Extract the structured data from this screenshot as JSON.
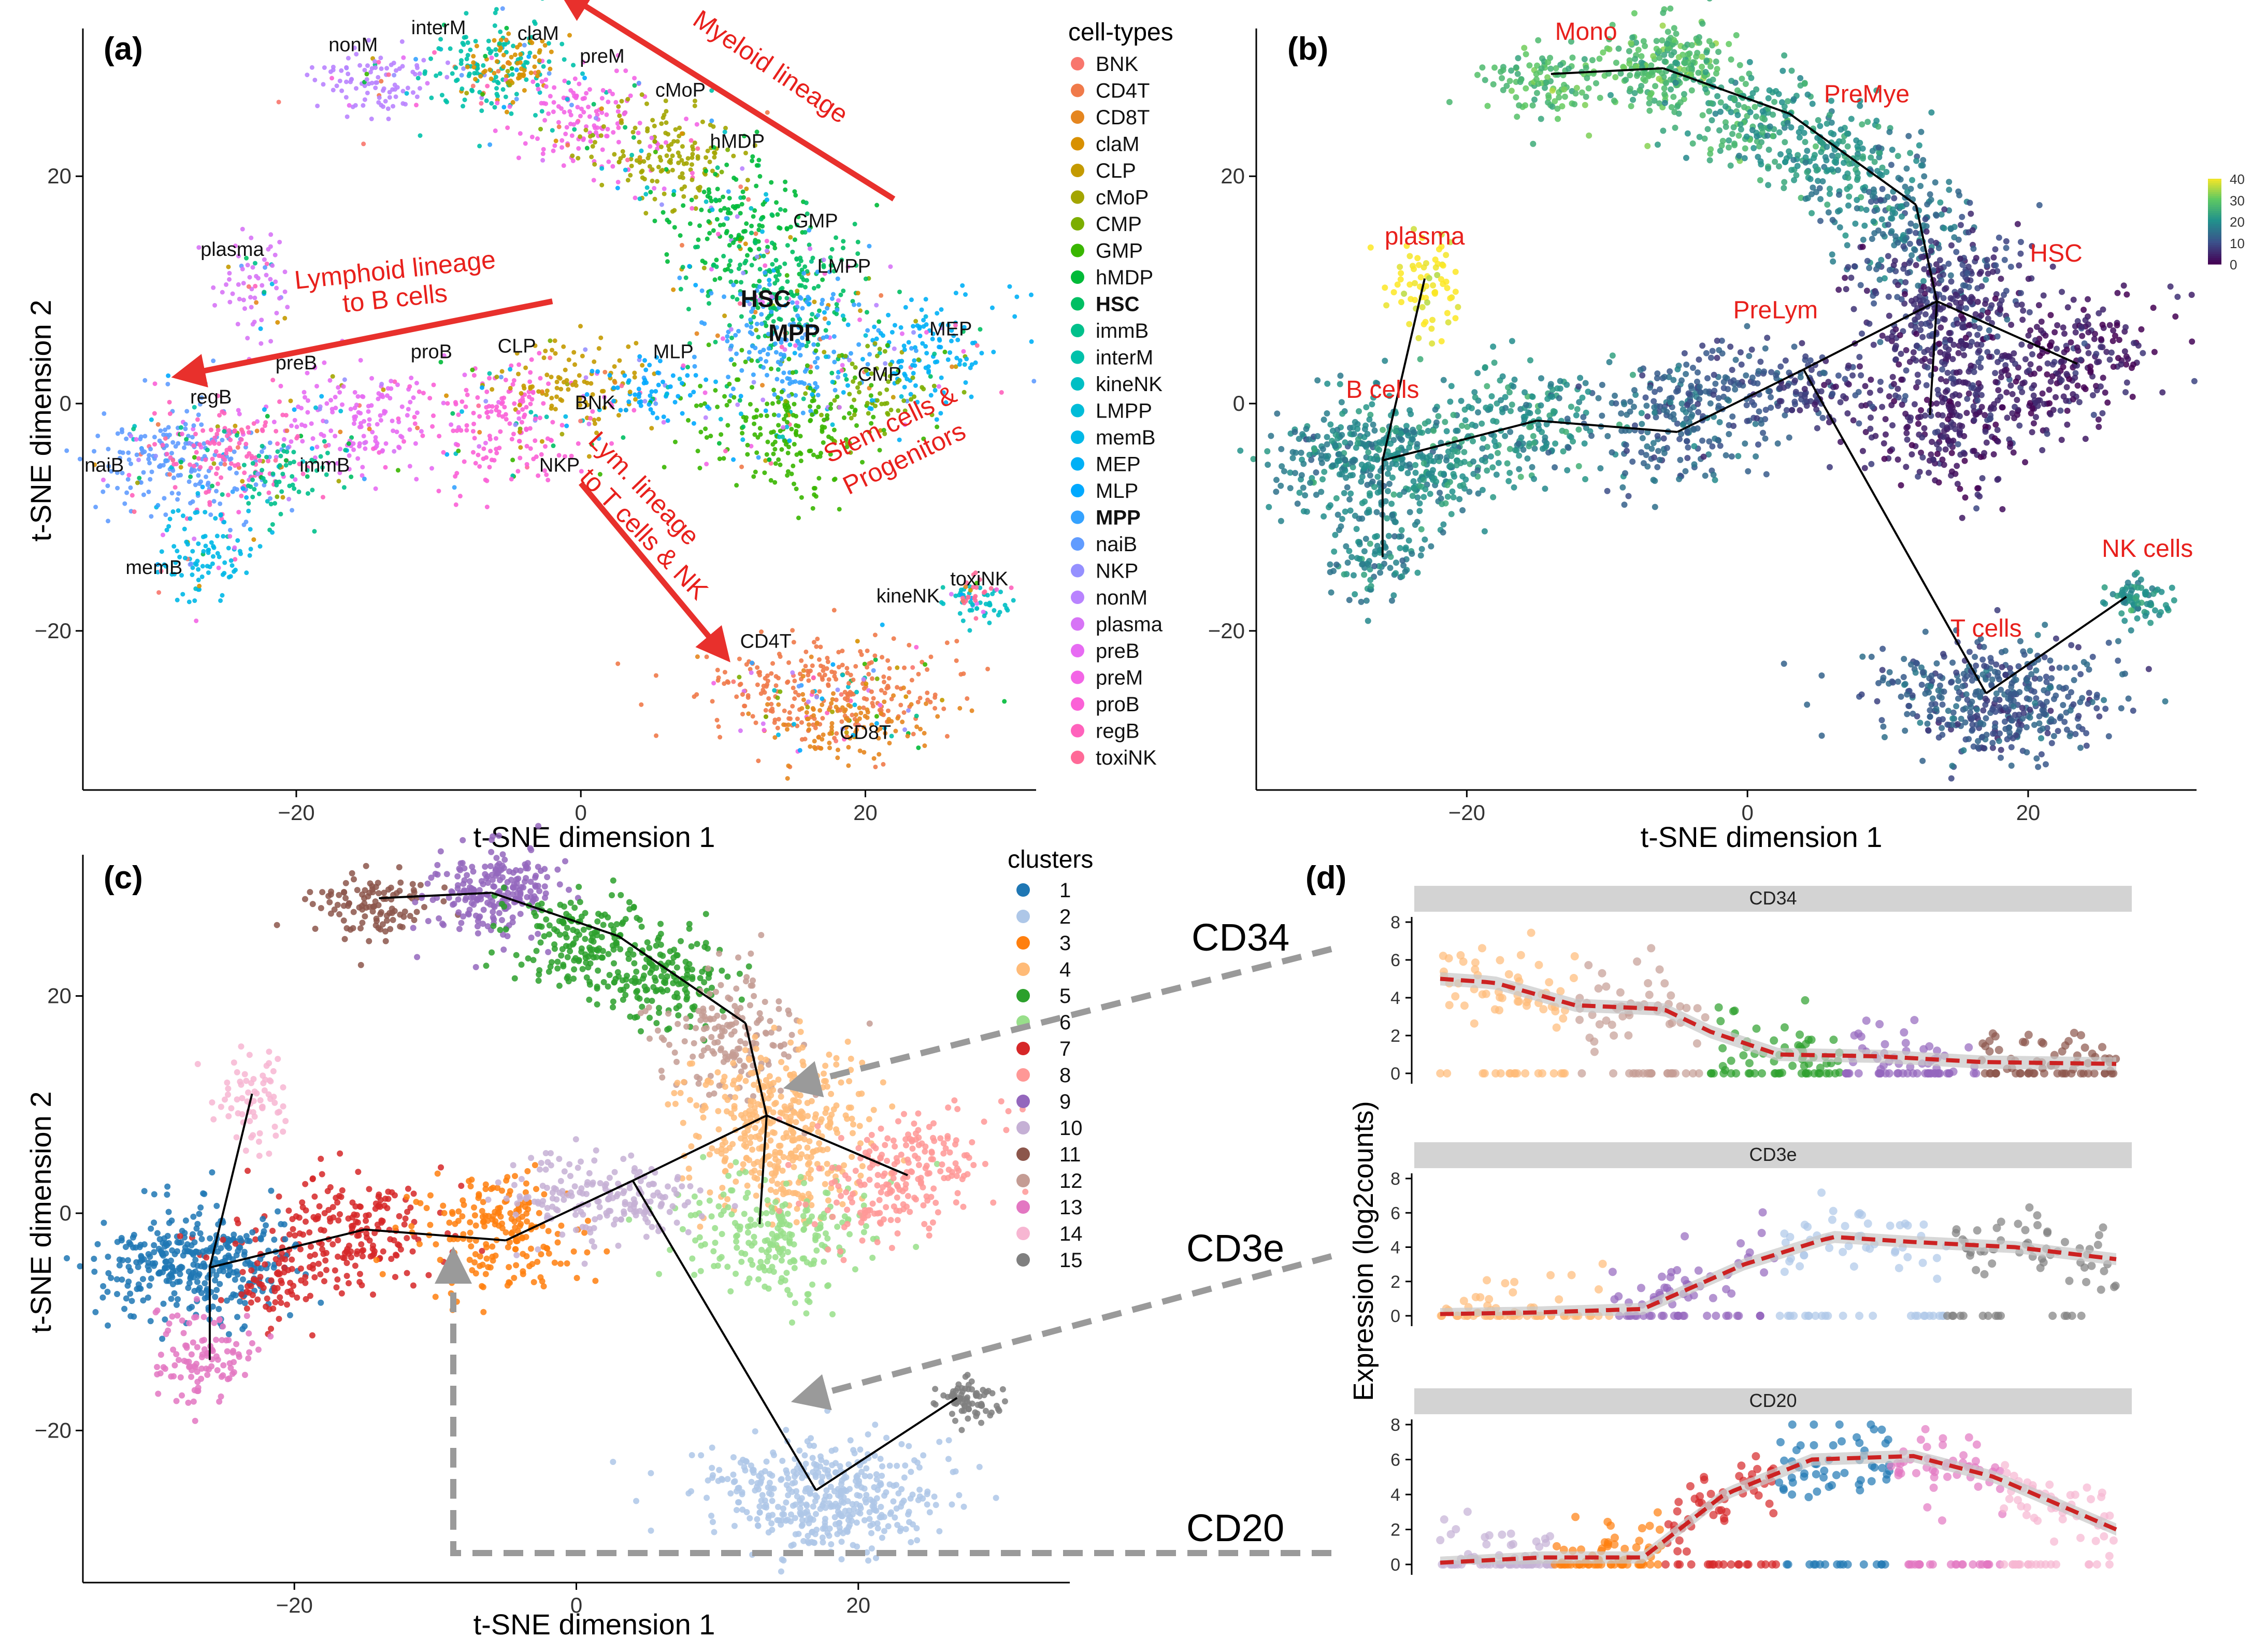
{
  "figure": {
    "panel_letters": {
      "a": "(a)",
      "b": "(b)",
      "c": "(c)",
      "d": "(d)"
    },
    "colors": {
      "arrow": "#e8302c",
      "label_red": "#e8201c",
      "axis": "#000000",
      "strip": "#d3d3d3",
      "trend": "#cc2222",
      "band": "#c8c8c8",
      "guide": "#9a9a9a"
    }
  },
  "chart_data": [
    {
      "id": "a",
      "type": "scatter",
      "title": "",
      "xlabel": "t-SNE dimension 1",
      "ylabel": "t-SNE dimension 2",
      "xlim": [
        -35,
        32
      ],
      "ylim": [
        -34,
        33
      ],
      "xticks": [
        -20,
        0,
        20
      ],
      "yticks": [
        -20,
        0,
        20
      ],
      "legend": {
        "title": "cell-types",
        "position": "right",
        "items": [
          {
            "name": "BNK",
            "color": "#f8766d",
            "bold": false
          },
          {
            "name": "CD4T",
            "color": "#f07a4a",
            "bold": false
          },
          {
            "name": "CD8T",
            "color": "#e5861f",
            "bold": false
          },
          {
            "name": "claM",
            "color": "#d89000",
            "bold": false
          },
          {
            "name": "CLP",
            "color": "#c49a00",
            "bold": false
          },
          {
            "name": "cMoP",
            "color": "#a3a500",
            "bold": false
          },
          {
            "name": "CMP",
            "color": "#7cae00",
            "bold": false
          },
          {
            "name": "GMP",
            "color": "#39b600",
            "bold": false
          },
          {
            "name": "hMDP",
            "color": "#00ba38",
            "bold": false
          },
          {
            "name": "HSC",
            "color": "#00bf63",
            "bold": true
          },
          {
            "name": "immB",
            "color": "#00c08b",
            "bold": false
          },
          {
            "name": "interM",
            "color": "#00c1aa",
            "bold": false
          },
          {
            "name": "kineNK",
            "color": "#00bfc4",
            "bold": false
          },
          {
            "name": "LMPP",
            "color": "#00bcd8",
            "bold": false
          },
          {
            "name": "memB",
            "color": "#00b8e7",
            "bold": false
          },
          {
            "name": "MEP",
            "color": "#00b0f6",
            "bold": false
          },
          {
            "name": "MLP",
            "color": "#00a9ff",
            "bold": false
          },
          {
            "name": "MPP",
            "color": "#35a2ff",
            "bold": true
          },
          {
            "name": "naiB",
            "color": "#619cff",
            "bold": false
          },
          {
            "name": "NKP",
            "color": "#9590ff",
            "bold": false
          },
          {
            "name": "nonM",
            "color": "#b983ff",
            "bold": false
          },
          {
            "name": "plasma",
            "color": "#d774f6",
            "bold": false
          },
          {
            "name": "preB",
            "color": "#e76bf3",
            "bold": false
          },
          {
            "name": "preM",
            "color": "#f365e6",
            "bold": false
          },
          {
            "name": "proB",
            "color": "#fb61d7",
            "bold": false
          },
          {
            "name": "regB",
            "color": "#ff62bc",
            "bold": false
          },
          {
            "name": "toxiNK",
            "color": "#ff6a98",
            "bold": false
          }
        ]
      },
      "cluster_labels": [
        {
          "text": "nonM",
          "x": -16,
          "y": 31,
          "bold": false
        },
        {
          "text": "interM",
          "x": -10,
          "y": 32.5,
          "bold": false
        },
        {
          "text": "claM",
          "x": -3,
          "y": 32,
          "bold": false
        },
        {
          "text": "preM",
          "x": 1.5,
          "y": 30,
          "bold": false
        },
        {
          "text": "cMoP",
          "x": 7,
          "y": 27,
          "bold": false
        },
        {
          "text": "hMDP",
          "x": 11,
          "y": 22.5,
          "bold": false
        },
        {
          "text": "GMP",
          "x": 16.5,
          "y": 15.5,
          "bold": false
        },
        {
          "text": "LMPP",
          "x": 18.5,
          "y": 11.5,
          "bold": false
        },
        {
          "text": "HSC",
          "x": 13,
          "y": 8.5,
          "bold": true
        },
        {
          "text": "MPP",
          "x": 15,
          "y": 5.5,
          "bold": true
        },
        {
          "text": "MEP",
          "x": 26,
          "y": 6,
          "bold": false
        },
        {
          "text": "CMP",
          "x": 21,
          "y": 2,
          "bold": false
        },
        {
          "text": "MLP",
          "x": 6.5,
          "y": 4,
          "bold": false
        },
        {
          "text": "BNK",
          "x": 1,
          "y": -0.5,
          "bold": false
        },
        {
          "text": "plasma",
          "x": -24.5,
          "y": 13,
          "bold": false
        },
        {
          "text": "preB",
          "x": -20,
          "y": 3,
          "bold": false
        },
        {
          "text": "proB",
          "x": -10.5,
          "y": 4,
          "bold": false
        },
        {
          "text": "CLP",
          "x": -4.5,
          "y": 4.5,
          "bold": false
        },
        {
          "text": "regB",
          "x": -26,
          "y": 0,
          "bold": false
        },
        {
          "text": "naiB",
          "x": -33.5,
          "y": -6,
          "bold": false
        },
        {
          "text": "immB",
          "x": -18,
          "y": -6,
          "bold": false
        },
        {
          "text": "NKP",
          "x": -1.5,
          "y": -6,
          "bold": false
        },
        {
          "text": "memB",
          "x": -30,
          "y": -15,
          "bold": false
        },
        {
          "text": "kineNK",
          "x": 23,
          "y": -17.5,
          "bold": false
        },
        {
          "text": "toxiNK",
          "x": 28,
          "y": -16,
          "bold": false
        },
        {
          "text": "CD4T",
          "x": 13,
          "y": -21.5,
          "bold": false
        },
        {
          "text": "CD8T",
          "x": 20,
          "y": -29.5,
          "bold": false
        }
      ],
      "annotations": [
        {
          "text": "Myeloid lineage",
          "x": 13,
          "y": 29,
          "rotate": 34
        },
        {
          "text": "Lymphoid lineage",
          "x": -13,
          "y": 11,
          "rotate": -6
        },
        {
          "text": "to B cells",
          "x": -13,
          "y": 8.5,
          "rotate": -6
        },
        {
          "text": "Lym. lineage",
          "x": 4,
          "y": -8,
          "rotate": 46
        },
        {
          "text": "to T cells & NK",
          "x": 4,
          "y": -12,
          "rotate": 46
        },
        {
          "text": "Stem cells &",
          "x": 22,
          "y": -2.5,
          "rotate": -26
        },
        {
          "text": "Progenitors",
          "x": 23,
          "y": -5.5,
          "rotate": -26
        }
      ],
      "arrows": [
        {
          "from": [
            22,
            18
          ],
          "to": [
            -1,
            36
          ]
        },
        {
          "from": [
            -2,
            9
          ],
          "to": [
            -28,
            2.5
          ]
        },
        {
          "from": [
            0,
            -7
          ],
          "to": [
            10,
            -22
          ]
        }
      ]
    },
    {
      "id": "b",
      "type": "scatter",
      "title": "",
      "xlabel": "t-SNE dimension 1",
      "ylabel": "",
      "xlim": [
        -35,
        32
      ],
      "ylim": [
        -34,
        33
      ],
      "xticks": [
        -20,
        0,
        20
      ],
      "yticks": [
        -20,
        0,
        20
      ],
      "colorbar": {
        "min": 0,
        "max": 40,
        "ticks": [
          0,
          10,
          20,
          30,
          40
        ],
        "position": "top-right"
      },
      "trajectory": [
        [
          -26,
          -13.5
        ],
        [
          -26,
          -5
        ],
        [
          -15,
          -1.5
        ],
        [
          -5,
          -2.5
        ],
        [
          4,
          3
        ],
        [
          13.5,
          9
        ],
        [
          17,
          -25.5
        ],
        [
          27,
          -17
        ],
        [
          -23,
          11
        ],
        [
          -14,
          29
        ],
        [
          -6,
          29.5
        ],
        [
          3,
          25.5
        ],
        [
          12,
          17.5
        ],
        [
          13.5,
          9
        ],
        [
          23.5,
          3.5
        ],
        [
          13,
          -1
        ]
      ],
      "segments": [
        [
          0,
          1
        ],
        [
          1,
          2
        ],
        [
          2,
          3
        ],
        [
          3,
          4
        ],
        [
          4,
          5
        ],
        [
          4,
          6
        ],
        [
          6,
          7
        ],
        [
          1,
          8
        ],
        [
          9,
          10
        ],
        [
          10,
          11
        ],
        [
          11,
          12
        ],
        [
          12,
          13
        ],
        [
          5,
          14
        ],
        [
          5,
          15
        ]
      ],
      "labels": [
        {
          "text": "Mono",
          "x": -11.5,
          "y": 32
        },
        {
          "text": "PreMye",
          "x": 8.5,
          "y": 26.5
        },
        {
          "text": "plasma",
          "x": -23,
          "y": 14
        },
        {
          "text": "HSC",
          "x": 22,
          "y": 12.5
        },
        {
          "text": "PreLym",
          "x": 2,
          "y": 7.5
        },
        {
          "text": "B cells",
          "x": -26,
          "y": 0.5
        },
        {
          "text": "NK cells",
          "x": 28.5,
          "y": -13.5
        },
        {
          "text": "T cells",
          "x": 17,
          "y": -20.5
        }
      ]
    },
    {
      "id": "c",
      "type": "scatter",
      "title": "",
      "xlabel": "t-SNE dimension 1",
      "ylabel": "t-SNE dimension 2",
      "xlim": [
        -35,
        35
      ],
      "ylim": [
        -34,
        33
      ],
      "xticks": [
        -20,
        0,
        20
      ],
      "yticks": [
        -20,
        0,
        20
      ],
      "legend": {
        "title": "clusters",
        "position": "right",
        "items": [
          {
            "name": "1",
            "color": "#1f77b4"
          },
          {
            "name": "2",
            "color": "#aec7e8"
          },
          {
            "name": "3",
            "color": "#ff7f0e"
          },
          {
            "name": "4",
            "color": "#ffbb78"
          },
          {
            "name": "5",
            "color": "#2ca02c"
          },
          {
            "name": "6",
            "color": "#98df8a"
          },
          {
            "name": "7",
            "color": "#d62728"
          },
          {
            "name": "8",
            "color": "#ff9896"
          },
          {
            "name": "9",
            "color": "#9467bd"
          },
          {
            "name": "10",
            "color": "#c5b0d5"
          },
          {
            "name": "11",
            "color": "#8c564b"
          },
          {
            "name": "12",
            "color": "#c49c94"
          },
          {
            "name": "13",
            "color": "#e377c2"
          },
          {
            "name": "14",
            "color": "#f7b6d2"
          },
          {
            "name": "15",
            "color": "#7f7f7f"
          }
        ]
      },
      "gene_labels": [
        "CD34",
        "CD3e",
        "CD20"
      ]
    },
    {
      "id": "d",
      "type": "scatter",
      "ylabel": "Expression  (log2counts)",
      "panels": [
        {
          "title": "CD34",
          "ylim": [
            0,
            8
          ],
          "yticks": [
            0,
            2,
            4,
            6,
            8
          ],
          "order": [
            "4",
            "12",
            "5",
            "9",
            "11"
          ],
          "trend": [
            [
              0,
              5
            ],
            [
              0.08,
              4.8
            ],
            [
              0.2,
              3.6
            ],
            [
              0.33,
              3.4
            ],
            [
              0.4,
              2.2
            ],
            [
              0.5,
              1.0
            ],
            [
              0.65,
              0.9
            ],
            [
              0.8,
              0.6
            ],
            [
              1,
              0.5
            ]
          ]
        },
        {
          "title": "CD3e",
          "ylim": [
            0,
            8
          ],
          "yticks": [
            0,
            2,
            4,
            6,
            8
          ],
          "order": [
            "4",
            "9",
            "2",
            "15"
          ],
          "trend": [
            [
              0,
              0.1
            ],
            [
              0.15,
              0.2
            ],
            [
              0.3,
              0.4
            ],
            [
              0.45,
              3.0
            ],
            [
              0.58,
              4.6
            ],
            [
              0.7,
              4.3
            ],
            [
              0.85,
              4.0
            ],
            [
              1,
              3.3
            ]
          ]
        },
        {
          "title": "CD20",
          "ylim": [
            0,
            8
          ],
          "yticks": [
            0,
            2,
            4,
            6,
            8
          ],
          "order": [
            "10",
            "3",
            "7",
            "1",
            "13",
            "14"
          ],
          "trend": [
            [
              0,
              0.1
            ],
            [
              0.15,
              0.4
            ],
            [
              0.3,
              0.4
            ],
            [
              0.42,
              4.0
            ],
            [
              0.55,
              6.0
            ],
            [
              0.7,
              6.2
            ],
            [
              0.82,
              5.0
            ],
            [
              1,
              2.0
            ]
          ]
        }
      ]
    }
  ]
}
